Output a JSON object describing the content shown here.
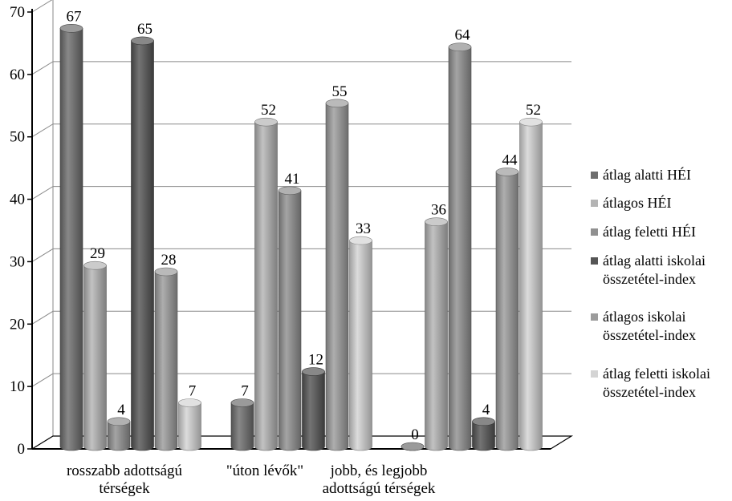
{
  "chart_data": {
    "type": "bar",
    "title": "",
    "xlabel": "",
    "ylabel": "",
    "ylim": [
      0,
      70
    ],
    "yticks": [
      0,
      10,
      20,
      30,
      40,
      50,
      60,
      70
    ],
    "grid": true,
    "legend_position": "right",
    "style": "3d-cylinder",
    "categories": [
      {
        "lines": [
          "rosszabb adottságú",
          "térségek"
        ]
      },
      {
        "lines": [
          "\"úton lévők\""
        ]
      },
      {
        "lines": [
          "jobb, és legjobb",
          "adottságú térségek"
        ]
      }
    ],
    "series": [
      {
        "name_lines": [
          "átlag alatti HÉI"
        ],
        "color": "#6e6e6e",
        "values": [
          67,
          7,
          0
        ]
      },
      {
        "name_lines": [
          "átlagos HÉI"
        ],
        "color": "#b4b4b4",
        "values": [
          29,
          52,
          36
        ]
      },
      {
        "name_lines": [
          "átlag feletti HÉI"
        ],
        "color": "#909090",
        "values": [
          4,
          41,
          64
        ]
      },
      {
        "name_lines": [
          "átlag alatti iskolai",
          "összetétel-index"
        ],
        "color": "#555555",
        "values": [
          65,
          12,
          4
        ]
      },
      {
        "name_lines": [
          "átlagos iskolai",
          "összetétel-index"
        ],
        "color": "#9c9c9c",
        "values": [
          28,
          55,
          44
        ]
      },
      {
        "name_lines": [
          "átlag feletti iskolai",
          "összetétel-index"
        ],
        "color": "#d4d4d4",
        "values": [
          7,
          33,
          52
        ]
      }
    ]
  }
}
